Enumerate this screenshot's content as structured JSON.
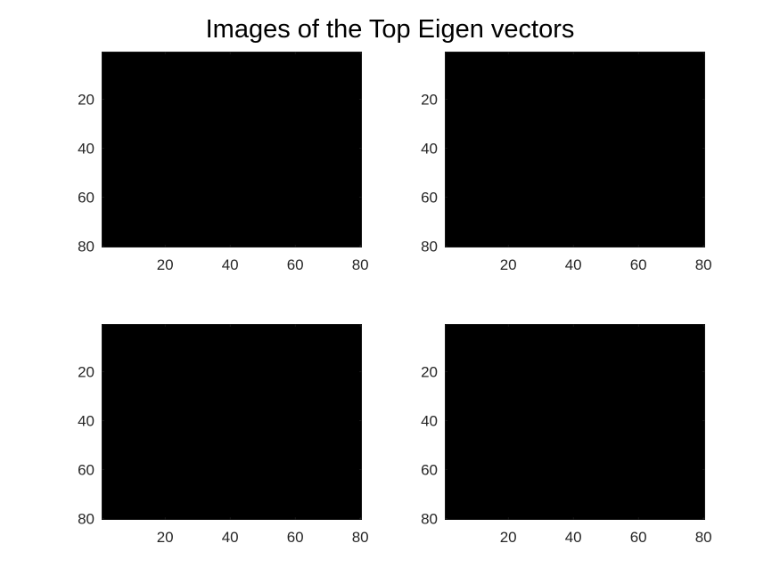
{
  "figure": {
    "title": "Images of the Top Eigen vectors",
    "background": "#ffffff"
  },
  "chart_data": [
    {
      "type": "heatmap",
      "image_color": "#000000",
      "xlim": [
        0.5,
        80.5
      ],
      "ylim": [
        0.5,
        80.5
      ],
      "y_reversed": true,
      "xticks": [
        20,
        40,
        60,
        80
      ],
      "yticks": [
        20,
        40,
        60,
        80
      ],
      "grid": false
    },
    {
      "type": "heatmap",
      "image_color": "#000000",
      "xlim": [
        0.5,
        80.5
      ],
      "ylim": [
        0.5,
        80.5
      ],
      "y_reversed": true,
      "xticks": [
        20,
        40,
        60,
        80
      ],
      "yticks": [
        20,
        40,
        60,
        80
      ],
      "grid": false
    },
    {
      "type": "heatmap",
      "image_color": "#000000",
      "xlim": [
        0.5,
        80.5
      ],
      "ylim": [
        0.5,
        80.5
      ],
      "y_reversed": true,
      "xticks": [
        20,
        40,
        60,
        80
      ],
      "yticks": [
        20,
        40,
        60,
        80
      ],
      "grid": false
    },
    {
      "type": "heatmap",
      "image_color": "#000000",
      "xlim": [
        0.5,
        80.5
      ],
      "ylim": [
        0.5,
        80.5
      ],
      "y_reversed": true,
      "xticks": [
        20,
        40,
        60,
        80
      ],
      "yticks": [
        20,
        40,
        60,
        80
      ],
      "grid": false
    }
  ]
}
